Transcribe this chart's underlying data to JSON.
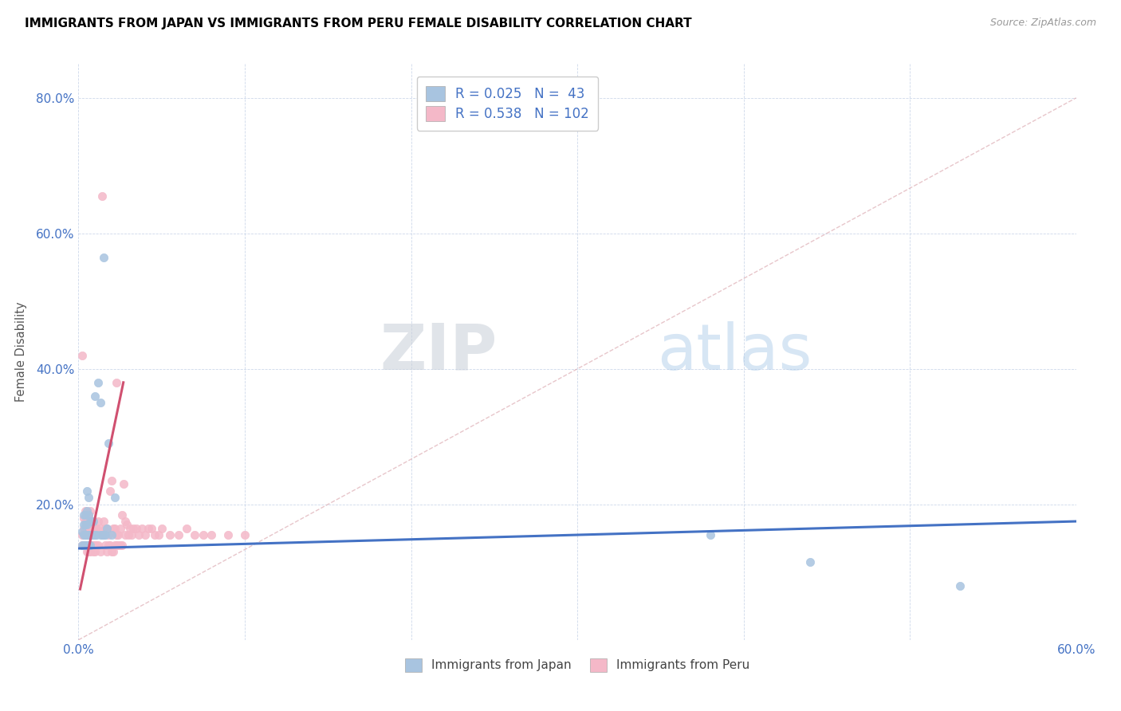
{
  "title": "IMMIGRANTS FROM JAPAN VS IMMIGRANTS FROM PERU FEMALE DISABILITY CORRELATION CHART",
  "source": "Source: ZipAtlas.com",
  "ylabel": "Female Disability",
  "xlim": [
    0.0,
    0.6
  ],
  "ylim": [
    0.0,
    0.85
  ],
  "xticks": [
    0.0,
    0.1,
    0.2,
    0.3,
    0.4,
    0.5,
    0.6
  ],
  "xticklabels": [
    "0.0%",
    "",
    "",
    "",
    "",
    "",
    "60.0%"
  ],
  "yticks": [
    0.0,
    0.2,
    0.4,
    0.6,
    0.8
  ],
  "yticklabels": [
    "",
    "20.0%",
    "40.0%",
    "60.0%",
    "80.0%"
  ],
  "color_japan": "#a8c4e0",
  "color_peru": "#f4b8c8",
  "color_japan_line": "#4472c4",
  "color_peru_line": "#d05070",
  "color_diagonal": "#d8a0a8",
  "color_axis_labels": "#4472c4",
  "watermark_zip": "ZIP",
  "watermark_atlas": "atlas",
  "japan_scatter_x": [
    0.002,
    0.002,
    0.003,
    0.003,
    0.003,
    0.003,
    0.004,
    0.004,
    0.004,
    0.004,
    0.005,
    0.005,
    0.005,
    0.005,
    0.005,
    0.006,
    0.006,
    0.006,
    0.006,
    0.007,
    0.007,
    0.007,
    0.008,
    0.008,
    0.009,
    0.009,
    0.01,
    0.01,
    0.011,
    0.012,
    0.013,
    0.013,
    0.014,
    0.015,
    0.015,
    0.016,
    0.017,
    0.018,
    0.02,
    0.022,
    0.38,
    0.44,
    0.53
  ],
  "japan_scatter_y": [
    0.14,
    0.16,
    0.14,
    0.155,
    0.17,
    0.185,
    0.14,
    0.155,
    0.17,
    0.185,
    0.14,
    0.155,
    0.17,
    0.19,
    0.22,
    0.14,
    0.155,
    0.185,
    0.21,
    0.14,
    0.155,
    0.175,
    0.155,
    0.175,
    0.155,
    0.175,
    0.155,
    0.36,
    0.155,
    0.38,
    0.155,
    0.35,
    0.155,
    0.155,
    0.565,
    0.155,
    0.165,
    0.29,
    0.155,
    0.21,
    0.155,
    0.115,
    0.08
  ],
  "peru_scatter_x": [
    0.002,
    0.002,
    0.002,
    0.003,
    0.003,
    0.003,
    0.003,
    0.004,
    0.004,
    0.004,
    0.004,
    0.004,
    0.005,
    0.005,
    0.005,
    0.005,
    0.005,
    0.005,
    0.006,
    0.006,
    0.006,
    0.006,
    0.006,
    0.006,
    0.007,
    0.007,
    0.007,
    0.007,
    0.007,
    0.008,
    0.008,
    0.008,
    0.008,
    0.009,
    0.009,
    0.009,
    0.01,
    0.01,
    0.01,
    0.011,
    0.011,
    0.012,
    0.012,
    0.013,
    0.013,
    0.014,
    0.014,
    0.015,
    0.015,
    0.016,
    0.016,
    0.017,
    0.017,
    0.018,
    0.018,
    0.019,
    0.019,
    0.02,
    0.02,
    0.021,
    0.021,
    0.022,
    0.022,
    0.023,
    0.023,
    0.023,
    0.024,
    0.024,
    0.025,
    0.025,
    0.026,
    0.026,
    0.027,
    0.028,
    0.028,
    0.029,
    0.03,
    0.031,
    0.032,
    0.033,
    0.035,
    0.036,
    0.038,
    0.04,
    0.042,
    0.044,
    0.046,
    0.048,
    0.05,
    0.055,
    0.06,
    0.065,
    0.07,
    0.075,
    0.08,
    0.09,
    0.1
  ],
  "peru_scatter_y": [
    0.14,
    0.155,
    0.42,
    0.14,
    0.155,
    0.165,
    0.18,
    0.14,
    0.155,
    0.165,
    0.175,
    0.19,
    0.13,
    0.14,
    0.155,
    0.165,
    0.175,
    0.185,
    0.13,
    0.14,
    0.155,
    0.165,
    0.175,
    0.185,
    0.13,
    0.14,
    0.155,
    0.165,
    0.19,
    0.14,
    0.155,
    0.165,
    0.175,
    0.13,
    0.14,
    0.165,
    0.13,
    0.14,
    0.165,
    0.14,
    0.165,
    0.14,
    0.175,
    0.13,
    0.165,
    0.155,
    0.655,
    0.155,
    0.175,
    0.14,
    0.165,
    0.13,
    0.165,
    0.14,
    0.155,
    0.14,
    0.22,
    0.13,
    0.235,
    0.13,
    0.165,
    0.14,
    0.165,
    0.14,
    0.155,
    0.38,
    0.14,
    0.155,
    0.14,
    0.165,
    0.14,
    0.185,
    0.23,
    0.155,
    0.175,
    0.17,
    0.155,
    0.165,
    0.155,
    0.165,
    0.165,
    0.155,
    0.165,
    0.155,
    0.165,
    0.165,
    0.155,
    0.155,
    0.165,
    0.155,
    0.155,
    0.165,
    0.155,
    0.155,
    0.155,
    0.155,
    0.155
  ]
}
